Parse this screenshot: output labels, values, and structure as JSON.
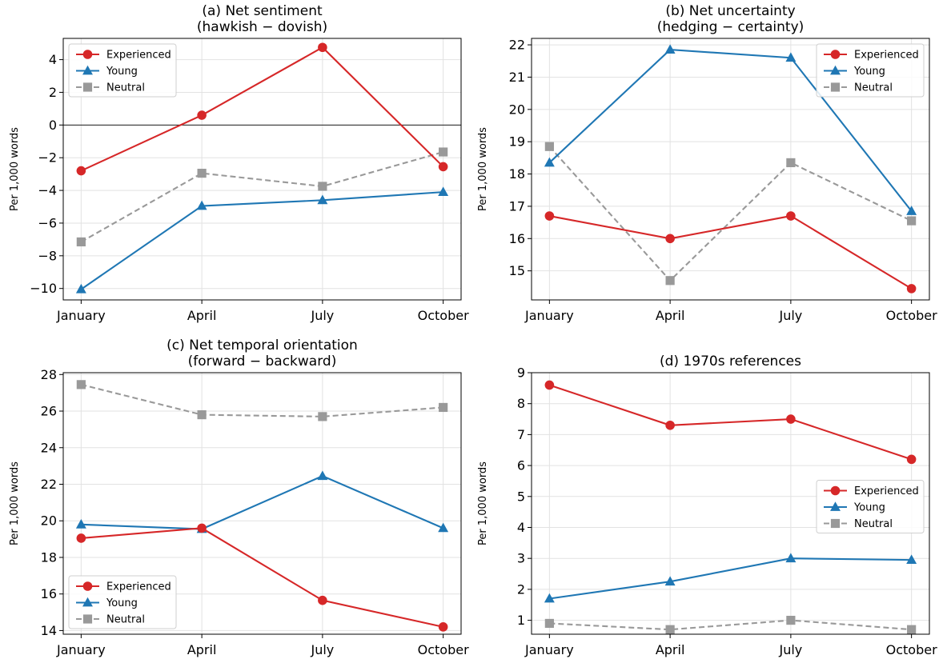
{
  "chart_data": [
    {
      "type": "line",
      "title": "(a) Net sentiment",
      "subtitle": "(hawkish − dovish)",
      "ylabel": "Per 1,000 words",
      "categories": [
        "January",
        "April",
        "July",
        "October"
      ],
      "ylim": [
        -10.7,
        5.3
      ],
      "yticks": [
        -10,
        -8,
        -6,
        -4,
        -2,
        0,
        2,
        4
      ],
      "yticklabels": [
        "−10",
        "−8",
        "−6",
        "−4",
        "−2",
        "0",
        "2",
        "4"
      ],
      "zero_line": true,
      "grid": true,
      "legend": "top-left",
      "series": [
        {
          "name": "Experienced",
          "values": [
            -2.8,
            0.6,
            4.75,
            -2.55
          ]
        },
        {
          "name": "Young",
          "values": [
            -10.05,
            -4.95,
            -4.6,
            -4.1
          ]
        },
        {
          "name": "Neutral",
          "values": [
            -7.15,
            -2.95,
            -3.75,
            -1.65
          ]
        }
      ]
    },
    {
      "type": "line",
      "title": "(b) Net uncertainty",
      "subtitle": "(hedging − certainty)",
      "ylabel": "Per 1,000 words",
      "categories": [
        "January",
        "April",
        "July",
        "October"
      ],
      "ylim": [
        14.1,
        22.2
      ],
      "yticks": [
        15,
        16,
        17,
        18,
        19,
        20,
        21,
        22
      ],
      "yticklabels": [
        "15",
        "16",
        "17",
        "18",
        "19",
        "20",
        "21",
        "22"
      ],
      "zero_line": false,
      "grid": true,
      "legend": "top-right",
      "series": [
        {
          "name": "Experienced",
          "values": [
            16.7,
            16.0,
            16.7,
            14.45
          ]
        },
        {
          "name": "Young",
          "values": [
            18.35,
            21.85,
            21.6,
            16.85
          ]
        },
        {
          "name": "Neutral",
          "values": [
            18.85,
            14.7,
            18.35,
            16.55
          ]
        }
      ]
    },
    {
      "type": "line",
      "title": "(c) Net temporal orientation",
      "subtitle": "(forward − backward)",
      "ylabel": "Per 1,000 words",
      "categories": [
        "January",
        "April",
        "July",
        "October"
      ],
      "ylim": [
        13.8,
        28.1
      ],
      "yticks": [
        14,
        16,
        18,
        20,
        22,
        24,
        26,
        28
      ],
      "yticklabels": [
        "14",
        "16",
        "18",
        "20",
        "22",
        "24",
        "26",
        "28"
      ],
      "zero_line": false,
      "grid": true,
      "legend": "bottom-left",
      "series": [
        {
          "name": "Experienced",
          "values": [
            19.05,
            19.6,
            15.65,
            14.2
          ]
        },
        {
          "name": "Young",
          "values": [
            19.8,
            19.55,
            22.45,
            19.6
          ]
        },
        {
          "name": "Neutral",
          "values": [
            27.45,
            25.8,
            25.7,
            26.2
          ]
        }
      ]
    },
    {
      "type": "line",
      "title": "(d) 1970s references",
      "subtitle": "",
      "ylabel": "Per 1,000 words",
      "categories": [
        "January",
        "April",
        "July",
        "October"
      ],
      "ylim": [
        0.55,
        9.0
      ],
      "yticks": [
        1,
        2,
        3,
        4,
        5,
        6,
        7,
        8,
        9
      ],
      "yticklabels": [
        "1",
        "2",
        "3",
        "4",
        "5",
        "6",
        "7",
        "8",
        "9"
      ],
      "zero_line": false,
      "grid": true,
      "legend": "center-right",
      "series": [
        {
          "name": "Experienced",
          "values": [
            8.6,
            7.3,
            7.5,
            6.2
          ]
        },
        {
          "name": "Young",
          "values": [
            1.7,
            2.25,
            3.0,
            2.95
          ]
        },
        {
          "name": "Neutral",
          "values": [
            0.9,
            0.7,
            1.0,
            0.7
          ]
        }
      ]
    }
  ],
  "styles": {
    "Experienced": {
      "color": "#d62728",
      "marker": "circle",
      "dash": "solid"
    },
    "Young": {
      "color": "#1f77b4",
      "marker": "triangle",
      "dash": "solid"
    },
    "Neutral": {
      "color": "#999999",
      "marker": "square",
      "dash": "dashed"
    }
  }
}
